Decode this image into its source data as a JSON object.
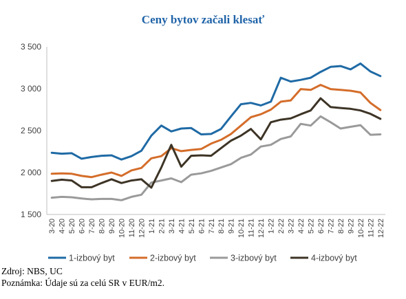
{
  "chart_data": {
    "type": "line",
    "title": "Ceny bytov začali klesať",
    "xlabel": "",
    "ylabel": "",
    "ylim": [
      1500,
      3500
    ],
    "yticks": [
      1500,
      2000,
      2500,
      3000,
      3500
    ],
    "ytick_labels": [
      "1 500",
      "2 000",
      "2 500",
      "3 000",
      "3 500"
    ],
    "grid": false,
    "legend_position": "bottom",
    "categories": [
      "3-20",
      "4-20",
      "5-20",
      "6-20",
      "7-20",
      "8-20",
      "9-20",
      "10-20",
      "11-20",
      "12-20",
      "1-21",
      "2-21",
      "3-21",
      "4-21",
      "5-21",
      "6-21",
      "7-21",
      "8-21",
      "9-21",
      "10-21",
      "11-21",
      "12-21",
      "1-22",
      "2-22",
      "3-22",
      "4-22",
      "5-22",
      "6-22",
      "7-22",
      "8-22",
      "9-22",
      "10-22",
      "11-22",
      "12-22"
    ],
    "series": [
      {
        "name": "1-izbový byt",
        "color": "#1f6aa5",
        "values": [
          2235,
          2225,
          2230,
          2165,
          2185,
          2200,
          2205,
          2155,
          2195,
          2260,
          2440,
          2560,
          2490,
          2525,
          2530,
          2455,
          2460,
          2520,
          2670,
          2815,
          2830,
          2800,
          2845,
          3130,
          3085,
          3105,
          3130,
          3200,
          3260,
          3270,
          3230,
          3300,
          3205,
          3150
        ]
      },
      {
        "name": "2-izbový byt",
        "color": "#d46d2a",
        "values": [
          1985,
          1990,
          1985,
          1960,
          1945,
          1975,
          2000,
          1960,
          2025,
          2055,
          2170,
          2195,
          2290,
          2255,
          2270,
          2280,
          2345,
          2390,
          2460,
          2560,
          2660,
          2695,
          2750,
          2845,
          2860,
          2995,
          2985,
          3045,
          2995,
          2985,
          2975,
          2955,
          2830,
          2745
        ]
      },
      {
        "name": "3-izbový byt",
        "color": "#9a9a9a",
        "values": [
          1700,
          1710,
          1705,
          1690,
          1680,
          1685,
          1685,
          1670,
          1710,
          1735,
          1880,
          1905,
          1930,
          1885,
          1975,
          1990,
          2020,
          2060,
          2100,
          2175,
          2215,
          2310,
          2330,
          2400,
          2430,
          2580,
          2560,
          2670,
          2600,
          2525,
          2545,
          2565,
          2450,
          2455
        ]
      },
      {
        "name": "4-izbový byt",
        "color": "#3d3426",
        "values": [
          1900,
          1915,
          1905,
          1825,
          1825,
          1875,
          1920,
          1875,
          1905,
          1920,
          1820,
          2060,
          2330,
          2070,
          2200,
          2205,
          2200,
          2290,
          2380,
          2440,
          2520,
          2395,
          2600,
          2630,
          2645,
          2695,
          2740,
          2885,
          2780,
          2770,
          2760,
          2740,
          2700,
          2640
        ]
      }
    ]
  },
  "notes": {
    "source": "Zdroj: NBS, UC",
    "note": "Poznámka: Údaje sú za celú SR v EUR/m2."
  }
}
